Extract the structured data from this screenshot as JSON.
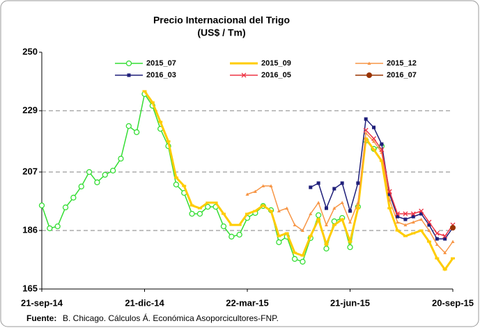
{
  "chart_data": {
    "type": "line",
    "title": "Precio Internacional del Trigo",
    "subtitle": "(US$ / Tm)",
    "source_label": "Fuente:",
    "source_text": "B. Chicago. Cálculos Á. Económica Asoporcicultores-FNP.",
    "categories": [
      "21-sep-14",
      null,
      null,
      null,
      null,
      null,
      null,
      null,
      null,
      null,
      null,
      null,
      null,
      "21-dic-14",
      null,
      null,
      null,
      null,
      null,
      null,
      null,
      null,
      null,
      null,
      null,
      null,
      "22-mar-15",
      null,
      null,
      null,
      null,
      null,
      null,
      null,
      null,
      null,
      null,
      null,
      null,
      "21-jun-15",
      null,
      null,
      null,
      null,
      null,
      null,
      null,
      null,
      null,
      null,
      null,
      null,
      "20-sep-15"
    ],
    "ylim": [
      165,
      250
    ],
    "yticks": [
      165,
      186,
      207,
      229,
      250
    ],
    "grid": true,
    "series": [
      {
        "name": "2015_07",
        "color": "#33dd33",
        "marker": "circle-open",
        "values": [
          195,
          186.8,
          187.5,
          194.3,
          197.8,
          201.8,
          207,
          203.3,
          206,
          207.5,
          211.8,
          223.5,
          221.3,
          235,
          230.8,
          222.5,
          216.3,
          202.5,
          199.5,
          192,
          192,
          194.5,
          194.5,
          187.5,
          183.8,
          184.5,
          190.5,
          192.3,
          194.8,
          193.3,
          181.8,
          183.8,
          175.8,
          174.8,
          183.3,
          191.5,
          179.5,
          189.3,
          190.5,
          180,
          194.5,
          218.3,
          215.3,
          216.3,
          null,
          null,
          null,
          null,
          null,
          null,
          null,
          null,
          null
        ]
      },
      {
        "name": "2015_09",
        "color": "#ffcc00",
        "marker": "dash",
        "values": [
          null,
          null,
          null,
          null,
          null,
          null,
          null,
          null,
          null,
          null,
          null,
          null,
          null,
          236,
          232,
          225,
          218,
          205,
          202,
          195,
          194,
          196,
          196,
          192,
          188,
          188,
          192,
          193,
          195,
          193,
          184,
          185,
          178,
          177,
          184,
          190,
          181,
          188,
          190,
          182,
          194,
          219,
          215,
          211,
          194,
          186,
          184,
          185,
          186,
          182,
          176,
          172,
          176
        ]
      },
      {
        "name": "2015_12",
        "color": "#f79646",
        "marker": "triangle",
        "values": [
          null,
          null,
          null,
          null,
          null,
          null,
          null,
          null,
          null,
          null,
          null,
          null,
          null,
          null,
          null,
          null,
          null,
          null,
          null,
          null,
          null,
          null,
          null,
          null,
          null,
          null,
          199,
          200,
          202,
          202,
          193,
          194,
          188,
          186,
          192,
          196,
          188,
          194,
          196,
          189,
          196,
          221,
          218,
          214,
          197,
          189,
          188,
          189,
          190,
          186,
          181,
          178,
          182
        ]
      },
      {
        "name": "2016_03",
        "color": "#1f1f7a",
        "marker": "square",
        "values": [
          null,
          null,
          null,
          null,
          null,
          null,
          null,
          null,
          null,
          null,
          null,
          null,
          null,
          null,
          null,
          null,
          null,
          null,
          null,
          null,
          null,
          null,
          null,
          null,
          null,
          null,
          null,
          null,
          null,
          null,
          null,
          null,
          null,
          null,
          201.5,
          203,
          194,
          201,
          203,
          193,
          203,
          226,
          223,
          217,
          199,
          191,
          190,
          191,
          192,
          188,
          183,
          183,
          187
        ]
      },
      {
        "name": "2016_05",
        "color": "#ee3344",
        "marker": "x",
        "values": [
          null,
          null,
          null,
          null,
          null,
          null,
          null,
          null,
          null,
          null,
          null,
          null,
          null,
          null,
          null,
          null,
          null,
          null,
          null,
          null,
          null,
          null,
          null,
          null,
          null,
          null,
          null,
          null,
          null,
          null,
          null,
          null,
          null,
          null,
          null,
          null,
          null,
          null,
          null,
          null,
          null,
          222,
          219,
          215,
          200,
          192,
          192,
          192,
          193,
          189,
          185,
          184,
          188
        ]
      },
      {
        "name": "2016_07",
        "color": "#993300",
        "marker": "circle",
        "values": [
          null,
          null,
          null,
          null,
          null,
          null,
          null,
          null,
          null,
          null,
          null,
          null,
          null,
          null,
          null,
          null,
          null,
          null,
          null,
          null,
          null,
          null,
          null,
          null,
          null,
          null,
          null,
          null,
          null,
          null,
          null,
          null,
          null,
          null,
          null,
          null,
          null,
          null,
          null,
          null,
          null,
          null,
          null,
          null,
          null,
          null,
          null,
          null,
          null,
          null,
          null,
          null,
          187
        ]
      }
    ]
  }
}
